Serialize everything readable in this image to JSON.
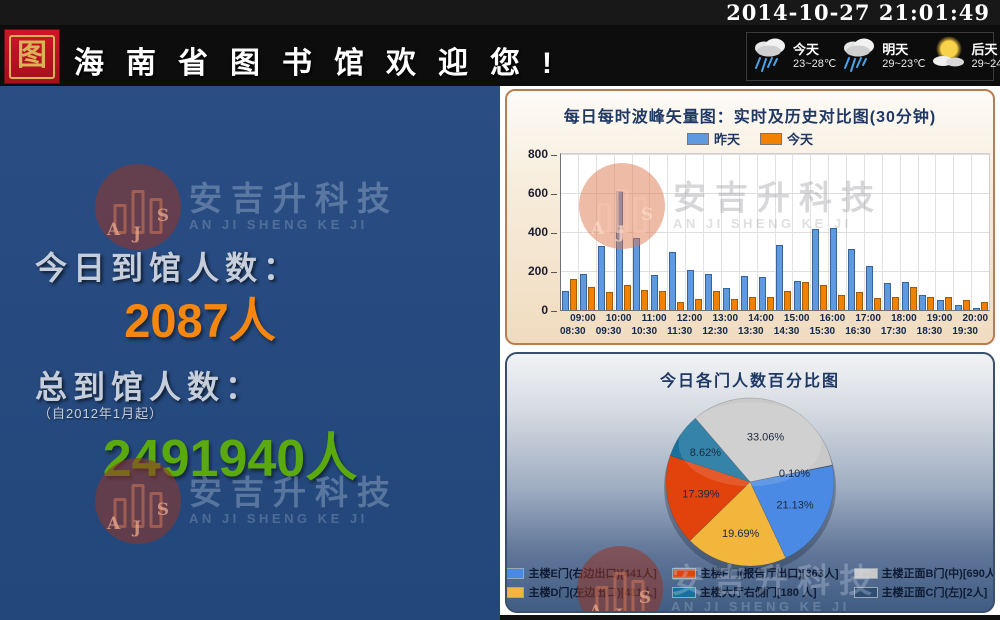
{
  "titlebar": {
    "datetime": "2014-10-27 21:01:49"
  },
  "header": {
    "title": "海南省图书馆欢迎您!",
    "logo_char": "图"
  },
  "weather": {
    "items": [
      {
        "day": "今天",
        "temp": "23~28℃",
        "icon": "rain"
      },
      {
        "day": "明天",
        "temp": "29~23℃",
        "icon": "rain"
      },
      {
        "day": "后天",
        "temp": "29~24℃",
        "icon": "sun-cloud"
      }
    ]
  },
  "left_panel": {
    "today_label": "今日到馆人数：",
    "today_count": "2087人",
    "today_color": "#f5870f",
    "total_label": "总到馆人数：",
    "total_note": "（自2012年1月起）",
    "total_count": "2491940人",
    "total_color": "#5aa90f"
  },
  "watermark": {
    "cn": "安吉升科技",
    "en": "AN JI SHENG KE JI",
    "letters": [
      "A",
      "J",
      "S"
    ]
  },
  "chart_data": [
    {
      "type": "bar",
      "title": "每日每时波峰矢量图：实时及历史对比图(30分钟)",
      "legend_position": "top",
      "grid": true,
      "ylim": [
        0,
        800
      ],
      "yticks": [
        0,
        200,
        400,
        600,
        800
      ],
      "categories": [
        "08:30",
        "09:00",
        "09:30",
        "10:00",
        "10:30",
        "11:00",
        "11:30",
        "12:00",
        "12:30",
        "13:00",
        "13:30",
        "14:00",
        "14:30",
        "15:00",
        "15:30",
        "16:00",
        "16:30",
        "17:00",
        "17:30",
        "18:00",
        "18:30",
        "19:00",
        "19:30",
        "20:00"
      ],
      "series": [
        {
          "name": "昨天",
          "color": "#5f9ae0",
          "border": "#35639c",
          "values": [
            100,
            185,
            330,
            610,
            370,
            180,
            295,
            205,
            185,
            115,
            175,
            170,
            335,
            150,
            415,
            420,
            315,
            225,
            140,
            145,
            75,
            50,
            25,
            10
          ]
        },
        {
          "name": "今天",
          "color": "#f08200",
          "border": "#a35a08",
          "values": [
            160,
            120,
            90,
            130,
            105,
            100,
            40,
            55,
            100,
            55,
            65,
            65,
            100,
            145,
            130,
            75,
            90,
            60,
            65,
            120,
            65,
            65,
            50,
            40
          ]
        }
      ]
    },
    {
      "type": "pie",
      "title": "今日各门人数百分比图",
      "start_angle": -40.6,
      "legend_position": "bottom",
      "slices": [
        {
          "legend": "主楼正面B门(中)[690人]",
          "count": 690,
          "pct": 33.06,
          "color": "#c9c9c9"
        },
        {
          "legend": "主楼正面C门(左)[2人]",
          "count": 2,
          "pct": 0.1,
          "color": "#2e4d72"
        },
        {
          "legend": "主楼E门(右边出口)[441人]",
          "count": 441,
          "pct": 21.13,
          "color": "#4a8ae4"
        },
        {
          "legend": "主楼D门(左边出口)[411人]",
          "count": 411,
          "pct": 19.69,
          "color": "#f2b63d"
        },
        {
          "legend": "主楼F门(报告厅出口)[363人]",
          "count": 363,
          "pct": 17.39,
          "color": "#e2420c"
        },
        {
          "legend": "主楼大厅右侧门[180 人]",
          "count": 180,
          "pct": 8.62,
          "color": "#17719c"
        }
      ]
    }
  ]
}
